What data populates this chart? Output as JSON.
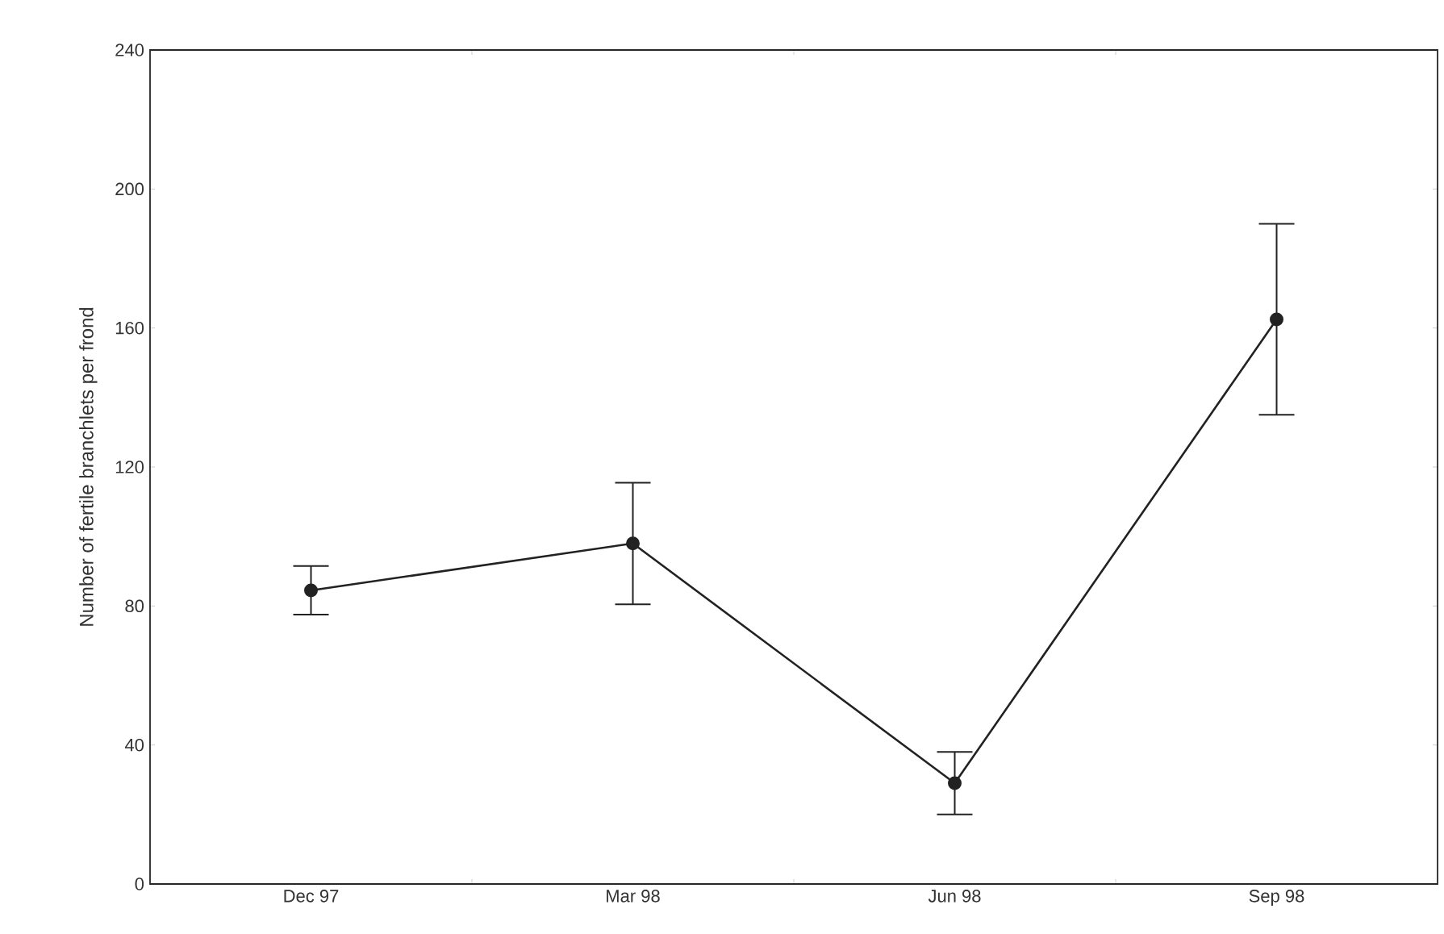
{
  "chart_data": {
    "type": "line",
    "ylabel": "Number of fertile branchlets per frond",
    "categories": [
      "Dec 97",
      "Mar 98",
      "Jun 98",
      "Sep 98"
    ],
    "series": [
      {
        "color": "#222222",
        "values": [
          84.5,
          98,
          29,
          162.5
        ],
        "errors": [
          7,
          17.5,
          9,
          27.5
        ]
      }
    ],
    "ylim": [
      0,
      240
    ],
    "yticks": [
      0,
      40,
      80,
      120,
      160,
      200,
      240
    ],
    "marker": "circle",
    "line_style": "solid",
    "grid": false
  }
}
